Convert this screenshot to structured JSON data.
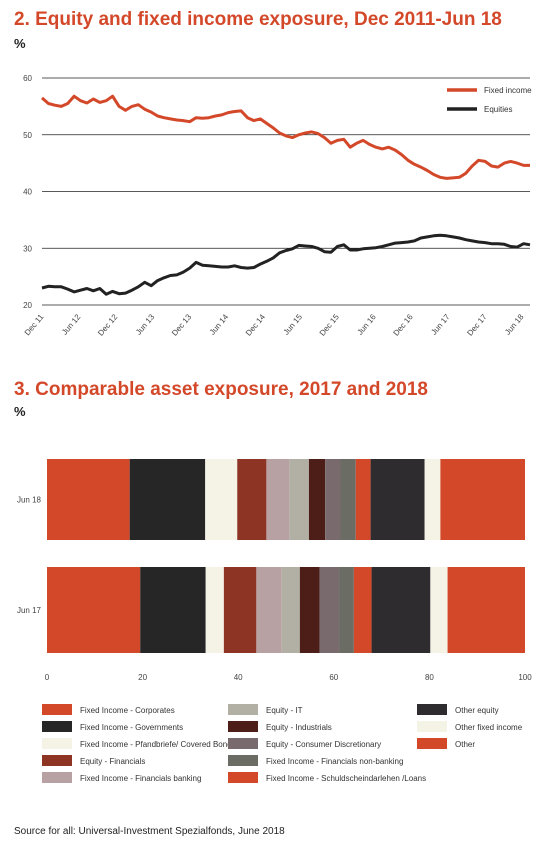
{
  "chart1_title": "2. Equity and fixed income exposure, Dec 2011-Jun 18",
  "chart1_unit": "%",
  "chart2_title": "3. Comparable asset exposure, 2017 and 2018",
  "chart2_unit": "%",
  "source": "Source for all: Universal-Investment Spezialfonds, June 2018",
  "colors": {
    "fixed_income_line": "#d4482a",
    "equities_line": "#222222",
    "title": "#d4482a"
  },
  "chart_data": [
    {
      "type": "line",
      "title": "2. Equity and fixed income exposure, Dec 2011-Jun 18",
      "ylabel": "%",
      "ylim": [
        20,
        60
      ],
      "yticks": [
        20,
        30,
        40,
        50,
        60
      ],
      "x_tick_labels": [
        "Dec 11",
        "Jun 12",
        "Dec 12",
        "Jun 13",
        "Dec 13",
        "Jun 14",
        "Dec 14",
        "Jun 15",
        "Dec 15",
        "Jun 16",
        "Dec 16",
        "Jun 17",
        "Dec 17",
        "Jun 18"
      ],
      "grid": "horizontal",
      "legend": "top-right",
      "series": [
        {
          "name": "Fixed income",
          "color": "#d4482a",
          "values": [
            56.5,
            55.5,
            55.2,
            55.0,
            55.5,
            56.8,
            56.0,
            55.6,
            56.3,
            55.7,
            56.0,
            56.8,
            55.0,
            54.3,
            55.0,
            55.3,
            54.5,
            54.0,
            53.3,
            53.0,
            52.8,
            52.6,
            52.5,
            52.3,
            53.0,
            52.9,
            53.0,
            53.3,
            53.5,
            53.9,
            54.1,
            54.2,
            53.0,
            52.5,
            52.8,
            52.0,
            51.2,
            50.3,
            49.8,
            49.5,
            50.0,
            50.3,
            50.5,
            50.2,
            49.5,
            48.5,
            49.0,
            49.2,
            47.8,
            48.5,
            49.0,
            48.3,
            47.8,
            47.5,
            47.8,
            47.3,
            46.5,
            45.5,
            44.8,
            44.3,
            43.7,
            43.0,
            42.5,
            42.3,
            42.4,
            42.5,
            43.2,
            44.5,
            45.5,
            45.3,
            44.5,
            44.3,
            45.0,
            45.3,
            45.0,
            44.6,
            44.6
          ]
        },
        {
          "name": "Equities",
          "color": "#222222",
          "values": [
            23.0,
            23.3,
            23.2,
            23.2,
            22.8,
            22.3,
            22.6,
            22.9,
            22.5,
            22.9,
            21.9,
            22.4,
            22.0,
            22.1,
            22.6,
            23.2,
            24.0,
            23.4,
            24.3,
            24.8,
            25.2,
            25.3,
            25.8,
            26.5,
            27.5,
            27.0,
            26.9,
            26.8,
            26.7,
            26.7,
            26.9,
            26.6,
            26.5,
            26.6,
            27.2,
            27.7,
            28.3,
            29.2,
            29.6,
            29.9,
            30.5,
            30.4,
            30.3,
            30.0,
            29.4,
            29.3,
            30.3,
            30.6,
            29.7,
            29.7,
            29.9,
            30.0,
            30.1,
            30.3,
            30.6,
            30.9,
            31.0,
            31.1,
            31.3,
            31.8,
            32.0,
            32.2,
            32.3,
            32.2,
            32.0,
            31.8,
            31.5,
            31.3,
            31.1,
            31.0,
            30.8,
            30.8,
            30.7,
            30.3,
            30.2,
            30.8,
            30.6
          ]
        }
      ]
    },
    {
      "type": "bar",
      "orientation": "horizontal",
      "stacked": true,
      "title": "3. Comparable asset exposure, 2017 and 2018",
      "ylabel": "%",
      "categories": [
        "Jun 18",
        "Jun 17"
      ],
      "xlim": [
        0,
        100
      ],
      "xticks": [
        0,
        20,
        40,
        60,
        80,
        100
      ],
      "legend": "bottom",
      "series": [
        {
          "name": "Fixed Income - Corporates",
          "color": "#d4482a",
          "values": [
            17.3,
            19.5
          ]
        },
        {
          "name": "Fixed Income - Governments",
          "color": "#272627",
          "values": [
            15.8,
            13.7
          ]
        },
        {
          "name": "Fixed Income - Pfandbriefe/ Covered Bonds",
          "color": "#f5f2e6",
          "values": [
            6.7,
            3.8
          ]
        },
        {
          "name": "Equity - Financials",
          "color": "#8e3424",
          "values": [
            6.1,
            6.8
          ]
        },
        {
          "name": "Fixed Income - Financials banking",
          "color": "#b7a1a3",
          "values": [
            4.8,
            5.3
          ]
        },
        {
          "name": "Equity - IT",
          "color": "#b2b0a5",
          "values": [
            4.1,
            3.8
          ]
        },
        {
          "name": "Equity - Industrials",
          "color": "#4d1d18",
          "values": [
            3.4,
            4.1
          ]
        },
        {
          "name": "Equity - Consumer Discretionary",
          "color": "#796a6d",
          "values": [
            3.2,
            4.1
          ]
        },
        {
          "name": "Fixed Income - Financials non-banking",
          "color": "#6b6c64",
          "values": [
            3.2,
            3.1
          ]
        },
        {
          "name": "Fixed Income - Schuldscheindarlehen /Loans",
          "color": "#d4482a",
          "values": [
            3.1,
            3.7
          ]
        },
        {
          "name": "Other equity",
          "color": "#2e2c2e",
          "values": [
            11.3,
            12.3
          ]
        },
        {
          "name": "Other fixed income",
          "color": "#f5f2e6",
          "values": [
            3.3,
            3.6
          ]
        },
        {
          "name": "Other",
          "color": "#d4482a",
          "values": [
            17.7,
            16.2
          ]
        }
      ]
    }
  ]
}
